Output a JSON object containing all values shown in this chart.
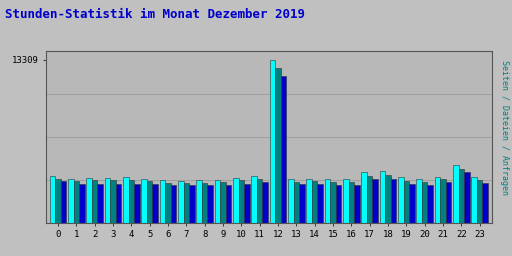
{
  "title": "Stunden-Statistik im Monat Dezember 2019",
  "title_color": "#0000cc",
  "ylabel": "Seiten / Dateien / Anfragen",
  "ylabel_color": "#008080",
  "background_color": "#c0c0c0",
  "plot_bg_color": "#b8b8b8",
  "hours": [
    0,
    1,
    2,
    3,
    4,
    5,
    6,
    7,
    8,
    9,
    10,
    11,
    12,
    13,
    14,
    15,
    16,
    17,
    18,
    19,
    20,
    21,
    22,
    23
  ],
  "seiten": [
    3800,
    3600,
    3650,
    3650,
    3750,
    3600,
    3450,
    3400,
    3450,
    3500,
    3650,
    3850,
    13309,
    3600,
    3600,
    3550,
    3600,
    4100,
    4200,
    3700,
    3600,
    3700,
    4700,
    3700
  ],
  "dateien": [
    3600,
    3400,
    3450,
    3450,
    3500,
    3400,
    3250,
    3250,
    3250,
    3300,
    3450,
    3600,
    12600,
    3350,
    3400,
    3300,
    3350,
    3800,
    3900,
    3400,
    3350,
    3550,
    4400,
    3450
  ],
  "anfragen": [
    3400,
    3200,
    3200,
    3200,
    3200,
    3200,
    3050,
    3050,
    3050,
    3100,
    3200,
    3350,
    12000,
    3150,
    3200,
    3100,
    3100,
    3550,
    3600,
    3200,
    3100,
    3300,
    4100,
    3250
  ],
  "ylim": [
    0,
    14000
  ],
  "ytick_value": 13309,
  "bar_width": 0.3,
  "colors": {
    "seiten": "#00ffff",
    "dateien": "#008080",
    "anfragen": "#0000cd"
  },
  "grid_color": "#999999",
  "border_color": "#333333"
}
